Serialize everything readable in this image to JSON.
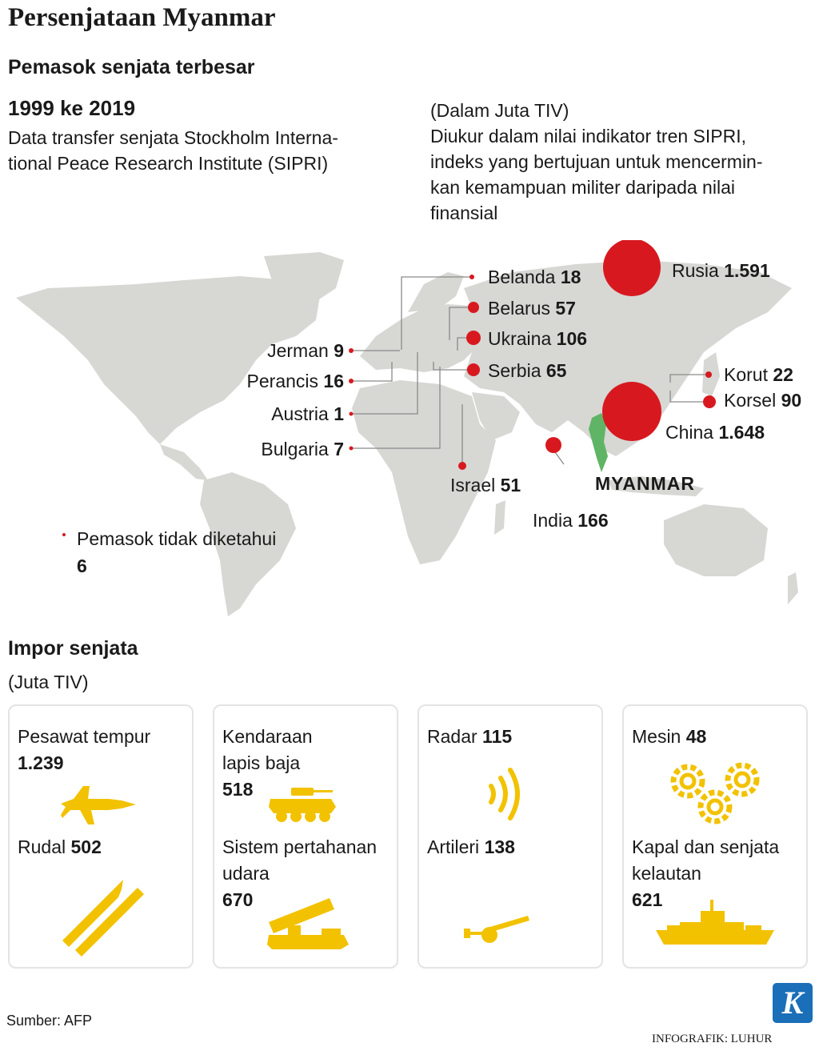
{
  "header": {
    "title": "Persenjataan Myanmar",
    "subtitle": "Pemasok senjata terbesar",
    "period": "1999 ke 2019",
    "desc_line1": "Data transfer senjata Stockholm Interna-",
    "desc_line2": "tional Peace Research Institute (SIPRI)",
    "unit": "(Dalam Juta TIV)",
    "unit_desc_line1": "Diukur dalam nilai indikator tren SIPRI,",
    "unit_desc_line2": "indeks yang bertujuan untuk mencermin-",
    "unit_desc_line3": "kan kemampuan militer daripada nilai",
    "unit_desc_line4": "finansial"
  },
  "suppliers": [
    {
      "name": "Belanda",
      "value": "18"
    },
    {
      "name": "Rusia",
      "value": "1.591"
    },
    {
      "name": "Belarus",
      "value": "57"
    },
    {
      "name": "Ukraina",
      "value": "106"
    },
    {
      "name": "Serbia",
      "value": "65"
    },
    {
      "name": "Jerman",
      "value": "9"
    },
    {
      "name": "Perancis",
      "value": "16"
    },
    {
      "name": "Austria",
      "value": "1"
    },
    {
      "name": "Bulgaria",
      "value": "7"
    },
    {
      "name": "Israel",
      "value": "51"
    },
    {
      "name": "India",
      "value": "166"
    },
    {
      "name": "China",
      "value": "1.648"
    },
    {
      "name": "Korut",
      "value": "22"
    },
    {
      "name": "Korsel",
      "value": "90"
    }
  ],
  "myanmar_label": "MYANMAR",
  "unknown": {
    "label": "Pemasok tidak diketahui",
    "value": "6"
  },
  "imports": {
    "title": "Impor senjata",
    "unit": "(Juta TIV)",
    "items": [
      {
        "label": "Pesawat tempur",
        "value": "1.239"
      },
      {
        "label": "Rudal",
        "value": "502"
      },
      {
        "label_line1": "Kendaraan",
        "label_line2": "lapis baja",
        "value": "518"
      },
      {
        "label_line1": "Sistem pertahanan",
        "label_line2": "udara",
        "value": "670"
      },
      {
        "label": "Radar",
        "value": "115"
      },
      {
        "label": "Artileri",
        "value": "138"
      },
      {
        "label": "Mesin",
        "value": "48"
      },
      {
        "label_line1": "Kapal dan senjata",
        "label_line2": "kelautan",
        "value": "621"
      }
    ]
  },
  "footer": {
    "source": "Sumber: AFP",
    "credit": "INFOGRAFIK: LUHUR",
    "logo_letter": "K"
  },
  "colors": {
    "marker": "#d7191f",
    "land": "#d7d7d4",
    "myanmar": "#5fb565",
    "icon": "#f2c200",
    "card_border": "#e4e4e4",
    "logo": "#1a6fb8"
  },
  "icons": [
    "fighter-jet-icon",
    "missile-icon",
    "armored-vehicle-icon",
    "air-defense-icon",
    "radar-icon",
    "artillery-icon",
    "gears-icon",
    "warship-icon"
  ]
}
